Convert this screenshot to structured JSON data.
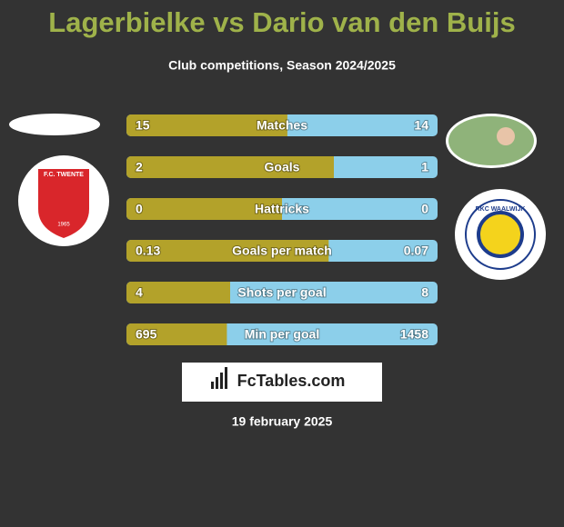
{
  "header": {
    "title": "Lagerbielke vs Dario van den Buijs",
    "subtitle": "Club competitions, Season 2024/2025"
  },
  "left_team": {
    "badge_text": "F.C. TWENTE",
    "badge_year": "1965"
  },
  "right_team": {
    "badge_text": "RKC WAALWIJK"
  },
  "colors": {
    "left": "#b3a22a",
    "right": "#8ccfea"
  },
  "rows": [
    {
      "label": "Matches",
      "left": 15,
      "right": 14
    },
    {
      "label": "Goals",
      "left": 2,
      "right": 1
    },
    {
      "label": "Hattricks",
      "left": 0,
      "right": 0
    },
    {
      "label": "Goals per match",
      "left": 0.13,
      "right": 0.07
    },
    {
      "label": "Shots per goal",
      "left": 4,
      "right": 8
    },
    {
      "label": "Min per goal",
      "left": 695,
      "right": 1458
    }
  ],
  "footer": {
    "brand": "FcTables.com",
    "date": "19 february 2025"
  }
}
